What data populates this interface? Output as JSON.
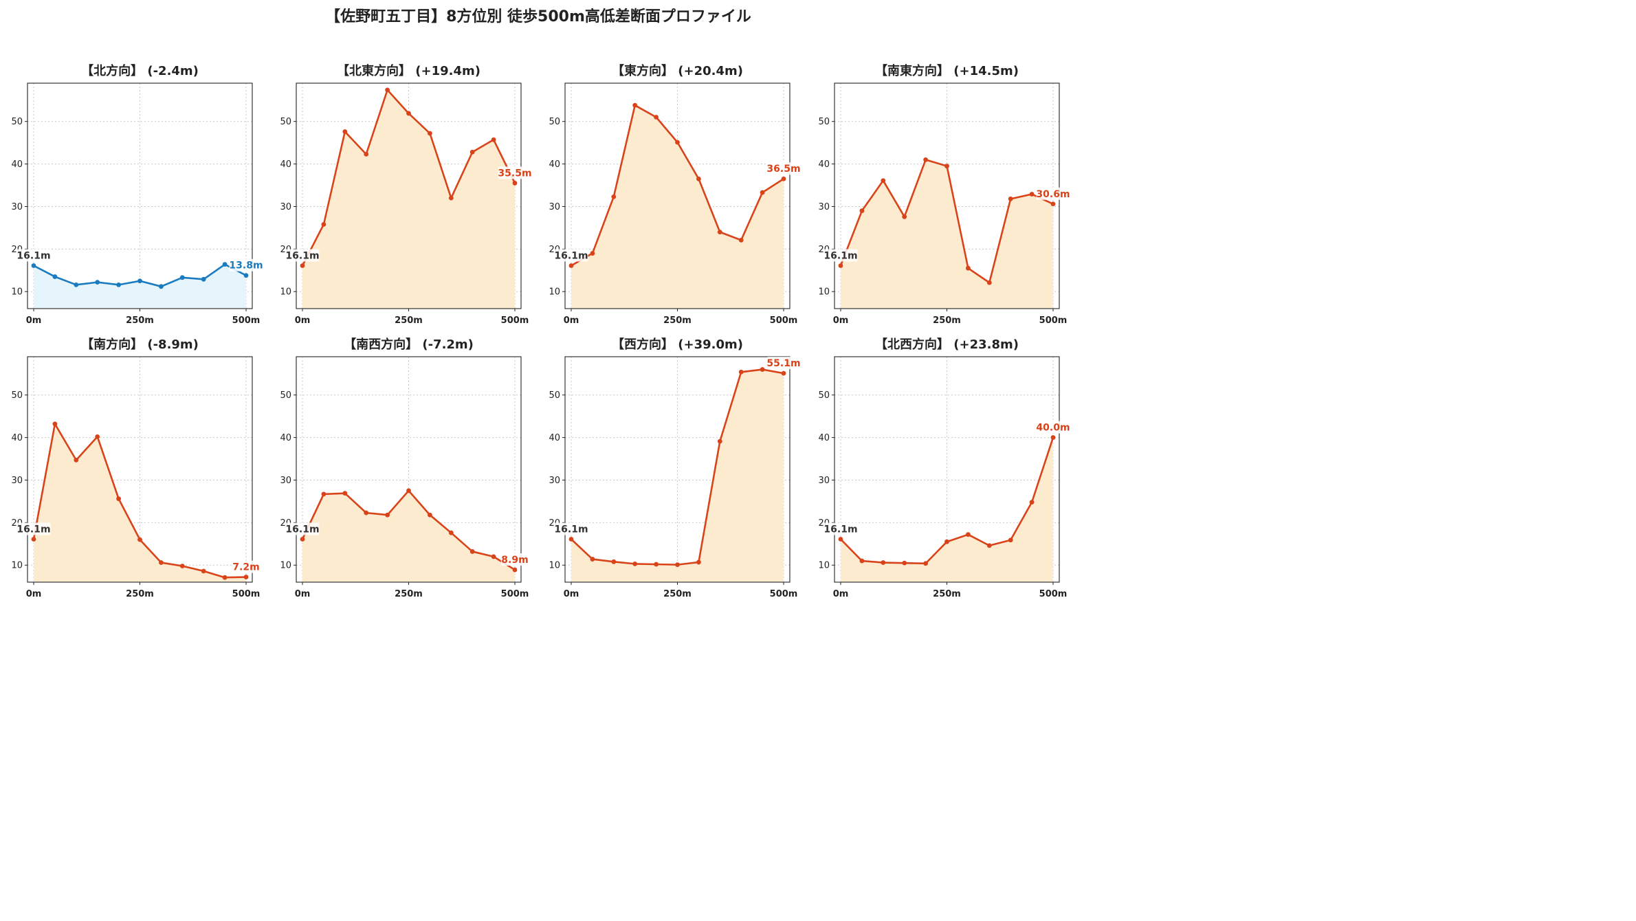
{
  "suptitle": "【佐野町五丁目】8方位別 徒歩500m高低差断面プロファイル",
  "colors": {
    "rise_line": "#d9431a",
    "rise_fill": "#fdebd0",
    "fall_line": "#1a7bbf",
    "fall_fill": "#e6f4fb",
    "start_label": "#333333"
  },
  "chart_data": [
    {
      "type": "area",
      "title": "【北方向】 (-2.4m)",
      "trend": "fall",
      "x": [
        0,
        50,
        100,
        150,
        200,
        250,
        300,
        350,
        400,
        450,
        500
      ],
      "y": [
        16.1,
        13.5,
        11.6,
        12.2,
        11.6,
        12.5,
        11.2,
        13.3,
        12.9,
        16.4,
        13.8
      ],
      "start_label": "16.1m",
      "end_label": "13.8m",
      "xticks": [
        "0m",
        "250m",
        "500m"
      ],
      "yticks": [
        10,
        20,
        30,
        40,
        50
      ],
      "ylim": [
        6,
        59
      ],
      "grid": true
    },
    {
      "type": "area",
      "title": "【北東方向】 (+19.4m)",
      "trend": "rise",
      "x": [
        0,
        50,
        100,
        150,
        200,
        250,
        300,
        350,
        400,
        450,
        500
      ],
      "y": [
        16.1,
        25.8,
        47.6,
        42.3,
        57.4,
        51.9,
        47.2,
        32.0,
        42.8,
        45.7,
        35.5
      ],
      "start_label": "16.1m",
      "end_label": "35.5m",
      "xticks": [
        "0m",
        "250m",
        "500m"
      ],
      "yticks": [
        10,
        20,
        30,
        40,
        50
      ],
      "ylim": [
        6,
        59
      ],
      "grid": true
    },
    {
      "type": "area",
      "title": "【東方向】 (+20.4m)",
      "trend": "rise",
      "x": [
        0,
        50,
        100,
        150,
        200,
        250,
        300,
        350,
        400,
        450,
        500
      ],
      "y": [
        16.1,
        19.0,
        32.3,
        53.8,
        51.0,
        45.1,
        36.5,
        24.0,
        22.1,
        33.3,
        36.5
      ],
      "start_label": "16.1m",
      "end_label": "36.5m",
      "xticks": [
        "0m",
        "250m",
        "500m"
      ],
      "yticks": [
        10,
        20,
        30,
        40,
        50
      ],
      "ylim": [
        6,
        59
      ],
      "grid": true
    },
    {
      "type": "area",
      "title": "【南東方向】 (+14.5m)",
      "trend": "rise",
      "x": [
        0,
        50,
        100,
        150,
        200,
        250,
        300,
        350,
        400,
        450,
        500
      ],
      "y": [
        16.1,
        29.0,
        36.1,
        27.6,
        41.0,
        39.5,
        15.5,
        12.1,
        31.8,
        32.9,
        30.6
      ],
      "start_label": "16.1m",
      "end_label": "30.6m",
      "xticks": [
        "0m",
        "250m",
        "500m"
      ],
      "yticks": [
        10,
        20,
        30,
        40,
        50
      ],
      "ylim": [
        6,
        59
      ],
      "grid": true
    },
    {
      "type": "area",
      "title": "【南方向】 (-8.9m)",
      "trend": "rise",
      "x": [
        0,
        50,
        100,
        150,
        200,
        250,
        300,
        350,
        400,
        450,
        500
      ],
      "y": [
        16.1,
        43.2,
        34.7,
        40.2,
        25.6,
        16.0,
        10.6,
        9.8,
        8.6,
        7.1,
        7.2
      ],
      "start_label": "16.1m",
      "end_label": "7.2m",
      "xticks": [
        "0m",
        "250m",
        "500m"
      ],
      "yticks": [
        10,
        20,
        30,
        40,
        50
      ],
      "ylim": [
        6,
        59
      ],
      "grid": true
    },
    {
      "type": "area",
      "title": "【南西方向】 (-7.2m)",
      "trend": "rise",
      "x": [
        0,
        50,
        100,
        150,
        200,
        250,
        300,
        350,
        400,
        450,
        500
      ],
      "y": [
        16.1,
        26.7,
        26.9,
        22.3,
        21.8,
        27.5,
        21.8,
        17.6,
        13.2,
        12.0,
        8.9
      ],
      "start_label": "16.1m",
      "end_label": "8.9m",
      "xticks": [
        "0m",
        "250m",
        "500m"
      ],
      "yticks": [
        10,
        20,
        30,
        40,
        50
      ],
      "ylim": [
        6,
        59
      ],
      "grid": true
    },
    {
      "type": "area",
      "title": "【西方向】 (+39.0m)",
      "trend": "rise",
      "x": [
        0,
        50,
        100,
        150,
        200,
        250,
        300,
        350,
        400,
        450,
        500
      ],
      "y": [
        16.1,
        11.4,
        10.8,
        10.3,
        10.2,
        10.1,
        10.7,
        39.1,
        55.4,
        56.0,
        55.1
      ],
      "start_label": "16.1m",
      "end_label": "55.1m",
      "xticks": [
        "0m",
        "250m",
        "500m"
      ],
      "yticks": [
        10,
        20,
        30,
        40,
        50
      ],
      "ylim": [
        6,
        59
      ],
      "grid": true
    },
    {
      "type": "area",
      "title": "【北西方向】 (+23.8m)",
      "trend": "rise",
      "x": [
        0,
        50,
        100,
        150,
        200,
        250,
        300,
        350,
        400,
        450,
        500
      ],
      "y": [
        16.1,
        11.0,
        10.6,
        10.5,
        10.4,
        15.5,
        17.2,
        14.6,
        15.9,
        24.8,
        40.0
      ],
      "start_label": "16.1m",
      "end_label": "40.0m",
      "xticks": [
        "0m",
        "250m",
        "500m"
      ],
      "yticks": [
        10,
        20,
        30,
        40,
        50
      ],
      "ylim": [
        6,
        59
      ],
      "grid": true
    }
  ]
}
